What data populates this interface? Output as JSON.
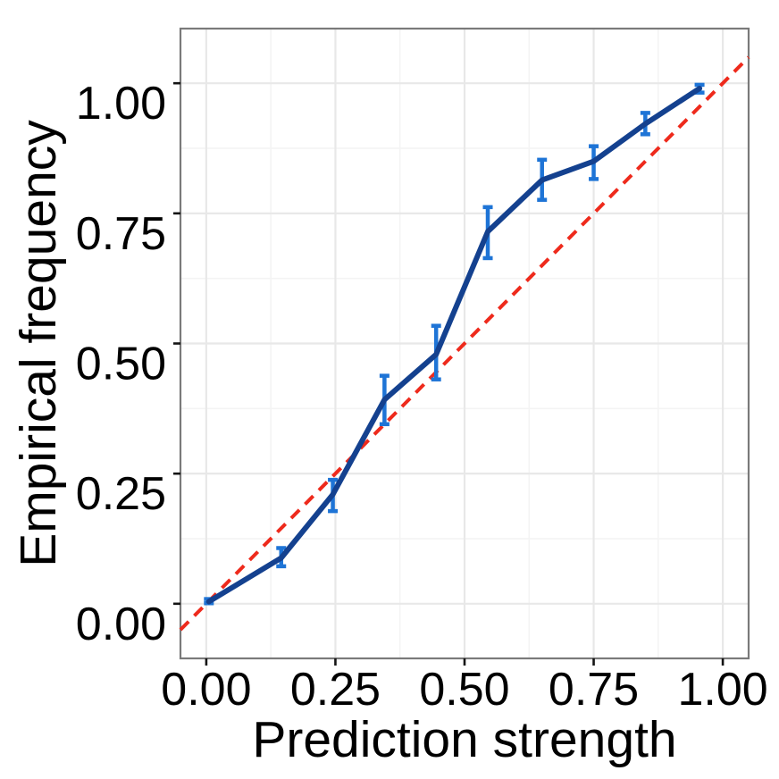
{
  "figure": {
    "background": "#ffffff"
  },
  "chart_data": {
    "type": "line",
    "title": "",
    "xlabel": "Prediction strength",
    "ylabel": "Empirical frequency",
    "xlim": [
      -0.05,
      1.05
    ],
    "ylim": [
      -0.105,
      1.105
    ],
    "grid": "major+minor",
    "legend_position": "none",
    "x_ticks": {
      "values": [
        0,
        0.25,
        0.5,
        0.75,
        1
      ],
      "labels": [
        "0.00",
        "0.25",
        "0.50",
        "0.75",
        "1.00"
      ]
    },
    "y_ticks": {
      "values": [
        0,
        0.25,
        0.5,
        0.75,
        1
      ],
      "labels": [
        "0.00",
        "0.25",
        "0.50",
        "0.75",
        "1.00"
      ]
    },
    "minor_tick_values": [
      0.125,
      0.375,
      0.625,
      0.875
    ],
    "reference_line": {
      "name": "identity-line",
      "style": "dashed",
      "color": "#ee2a1c",
      "x": [
        -0.05,
        1.05
      ],
      "y": [
        -0.05,
        1.05
      ]
    },
    "series": [
      {
        "name": "calibration-curve",
        "type": "line-with-error-bars",
        "line_color": "#14418f",
        "errorbar_color": "#1e74d6",
        "points": [
          {
            "x": 0.005,
            "y": 0.004,
            "lo": 0.001,
            "hi": 0.009
          },
          {
            "x": 0.145,
            "y": 0.088,
            "lo": 0.072,
            "hi": 0.107
          },
          {
            "x": 0.245,
            "y": 0.21,
            "lo": 0.178,
            "hi": 0.238
          },
          {
            "x": 0.345,
            "y": 0.392,
            "lo": 0.345,
            "hi": 0.438
          },
          {
            "x": 0.445,
            "y": 0.479,
            "lo": 0.431,
            "hi": 0.534
          },
          {
            "x": 0.545,
            "y": 0.715,
            "lo": 0.664,
            "hi": 0.762
          },
          {
            "x": 0.65,
            "y": 0.814,
            "lo": 0.776,
            "hi": 0.853
          },
          {
            "x": 0.75,
            "y": 0.85,
            "lo": 0.816,
            "hi": 0.879
          },
          {
            "x": 0.85,
            "y": 0.922,
            "lo": 0.902,
            "hi": 0.943
          },
          {
            "x": 0.955,
            "y": 0.99,
            "lo": 0.982,
            "hi": 0.997
          }
        ]
      }
    ],
    "style": {
      "grid_major_color": "#e8e8e8",
      "grid_minor_color": "#f4f4f4",
      "panel_border_color": "#7a7a7a",
      "tick_color": "#141414",
      "text_color": "#000000"
    }
  }
}
